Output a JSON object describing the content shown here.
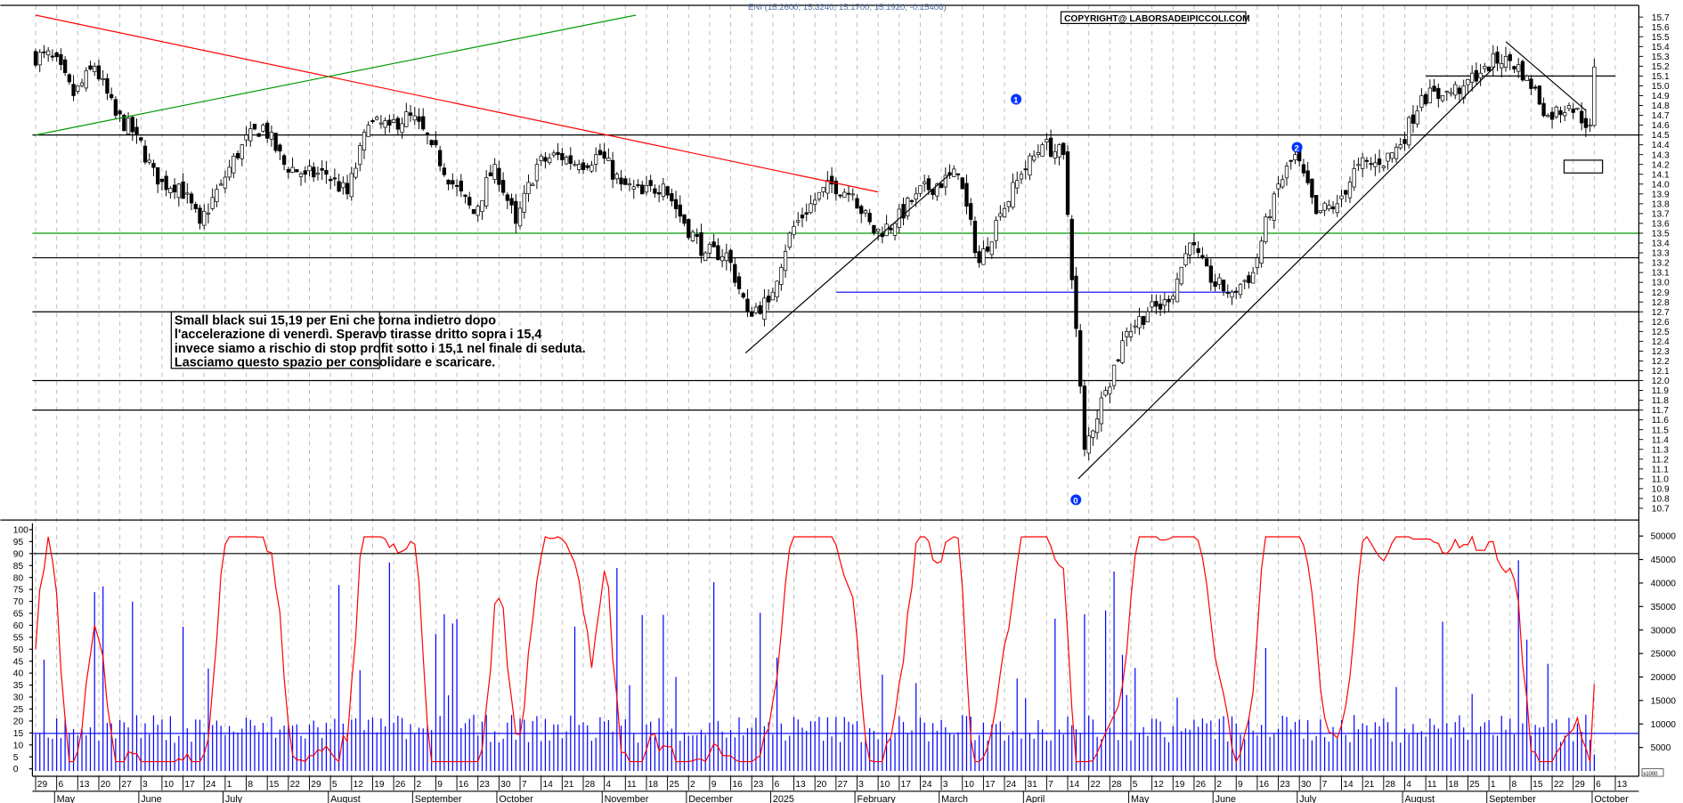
{
  "header": {
    "title": "ENI (15.2600, 15.3240, 15.1700, 15.1920, -0.15400)",
    "copyright": "COPYRIGHT@ LABORSADEIPICCOLI.COM"
  },
  "annotation": {
    "lines": [
      "Small black sui 15,19 per Eni che torna indietro dopo",
      "l'accelerazione di venerdì. Speravo tirasse dritto sopra i 15,4",
      "invece siamo a rischio di stop profit sotto i 15,1 nel finale di seduta.",
      "Lasciamo questo spazio per consolidare e scaricare."
    ]
  },
  "wave_labels": [
    "0",
    "1",
    "2"
  ],
  "colors": {
    "up": "#ffffff",
    "down": "#000000",
    "trend_red": "#ff0000",
    "trend_green": "#009900",
    "volume": "#0000ff",
    "oscillator": "#ff0000",
    "support_blue": "#0000ff"
  },
  "chart_data": [
    {
      "type": "candlestick",
      "title": "ENI (15.2600, 15.3240, 15.1700, 15.1920, -0.15400)",
      "ylim": [
        10.7,
        15.7
      ],
      "y_ticks": [
        "15.7",
        "15.6",
        "15.5",
        "15.4",
        "15.3",
        "15.2",
        "15.1",
        "15.0",
        "14.9",
        "14.8",
        "14.7",
        "14.6",
        "14.5",
        "14.4",
        "14.3",
        "14.2",
        "14.1",
        "14.0",
        "13.9",
        "13.8",
        "13.7",
        "13.6",
        "13.5",
        "13.4",
        "13.3",
        "13.2",
        "13.1",
        "13.0",
        "12.9",
        "12.8",
        "12.7",
        "12.6",
        "12.5",
        "12.4",
        "12.3",
        "12.2",
        "12.1",
        "12.0",
        "11.9",
        "11.8",
        "11.7",
        "11.6",
        "11.5",
        "11.4",
        "11.3",
        "11.2",
        "11.1",
        "11.0",
        "10.9",
        "10.8",
        "10.7"
      ],
      "grid": "vertical-dashed",
      "x_week_ticks": [
        "29",
        "6",
        "13",
        "20",
        "27",
        "3",
        "10",
        "17",
        "24",
        "1",
        "8",
        "15",
        "22",
        "29",
        "5",
        "12",
        "19",
        "26",
        "2",
        "9",
        "16",
        "23",
        "30",
        "7",
        "14",
        "21",
        "28",
        "4",
        "11",
        "18",
        "25",
        "2",
        "9",
        "16",
        "23",
        "6",
        "13",
        "20",
        "27",
        "3",
        "10",
        "17",
        "24",
        "3",
        "10",
        "17",
        "24",
        "31",
        "7",
        "14",
        "22",
        "28",
        "5",
        "12",
        "19",
        "26",
        "2",
        "9",
        "16",
        "23",
        "30",
        "7",
        "14",
        "21",
        "28",
        "4",
        "11",
        "18",
        "25",
        "1",
        "8",
        "15",
        "22",
        "29",
        "6",
        "13"
      ],
      "x_months": [
        {
          "label": "May",
          "week": 1
        },
        {
          "label": "June",
          "week": 5
        },
        {
          "label": "July",
          "week": 9
        },
        {
          "label": "August",
          "week": 14
        },
        {
          "label": "September",
          "week": 18
        },
        {
          "label": "October",
          "week": 22
        },
        {
          "label": "November",
          "week": 27
        },
        {
          "label": "December",
          "week": 31
        },
        {
          "label": "2025",
          "week": 35
        },
        {
          "label": "February",
          "week": 39
        },
        {
          "label": "March",
          "week": 43
        },
        {
          "label": "April",
          "week": 47
        },
        {
          "label": "May",
          "week": 52
        },
        {
          "label": "June",
          "week": 56
        },
        {
          "label": "July",
          "week": 60
        },
        {
          "label": "August",
          "week": 65
        },
        {
          "label": "September",
          "week": 69
        },
        {
          "label": "October",
          "week": 74
        }
      ],
      "weekly_close": [
        15.3,
        14.9,
        15.2,
        14.7,
        14.5,
        14.0,
        14.0,
        13.6,
        14.0,
        14.4,
        14.6,
        14.2,
        14.1,
        14.1,
        13.9,
        14.6,
        14.6,
        14.7,
        14.4,
        14.0,
        13.7,
        14.2,
        13.6,
        14.2,
        14.3,
        14.2,
        14.3,
        14.0,
        13.9,
        14.0,
        13.6,
        13.3,
        13.3,
        12.7,
        12.8,
        13.5,
        13.8,
        14.0,
        13.9,
        13.5,
        13.6,
        13.9,
        14.0,
        14.1,
        13.2,
        13.7,
        14.1,
        14.4,
        14.3,
        11.3,
        11.9,
        12.5,
        12.7,
        12.8,
        13.4,
        13.0,
        12.9,
        13.1,
        13.9,
        14.3,
        13.7,
        13.8,
        14.2,
        14.2,
        14.4,
        14.9,
        14.9,
        15.0,
        15.2,
        15.3,
        15.1,
        14.7,
        14.8,
        14.6,
        15.192
      ],
      "horizontal_levels": [
        {
          "value": 14.5,
          "color": "#000000"
        },
        {
          "value": 13.5,
          "color": "#009900"
        },
        {
          "value": 13.25,
          "color": "#000000"
        },
        {
          "value": 12.7,
          "color": "#000000"
        },
        {
          "value": 12.0,
          "color": "#000000"
        },
        {
          "value": 11.7,
          "color": "#000000"
        }
      ],
      "resistance_short": {
        "value": 15.1,
        "from_week": 66,
        "to_week": 75
      },
      "support_blue": {
        "value": 12.9,
        "from_week": 38,
        "to_week": 57
      },
      "trendlines": [
        {
          "color": "#ff0000",
          "from": [
            0,
            15.72
          ],
          "to": [
            40,
            13.92
          ]
        },
        {
          "color": "#009900",
          "from": [
            0,
            14.5
          ],
          "to": [
            28.5,
            15.72
          ]
        },
        {
          "color": "#000000",
          "from": [
            33.7,
            12.28
          ],
          "to": [
            43.4,
            14.1
          ]
        },
        {
          "color": "#000000",
          "from": [
            49.5,
            11.0
          ],
          "to": [
            69.3,
            15.2
          ]
        },
        {
          "color": "#000000",
          "from": [
            69.8,
            15.45
          ],
          "to": [
            73.6,
            14.75
          ]
        }
      ]
    },
    {
      "type": "bar+line",
      "left_ylim": [
        0,
        100
      ],
      "left_ticks": [
        "100",
        "95",
        "90",
        "85",
        "80",
        "75",
        "70",
        "65",
        "60",
        "55",
        "50",
        "45",
        "40",
        "35",
        "30",
        "25",
        "20",
        "15",
        "10",
        "5",
        "0"
      ],
      "right_ylim": [
        0,
        50000
      ],
      "right_ticks": [
        "50000",
        "45000",
        "40000",
        "35000",
        "30000",
        "25000",
        "20000",
        "15000",
        "10000",
        "5000"
      ],
      "right_unit": "x1000",
      "overbought_level": 90,
      "volume_reference": 8000,
      "series": [
        {
          "kind": "volume-bars",
          "color": "#0000ff"
        },
        {
          "kind": "oscillator-line",
          "color": "#ff0000"
        }
      ]
    }
  ]
}
